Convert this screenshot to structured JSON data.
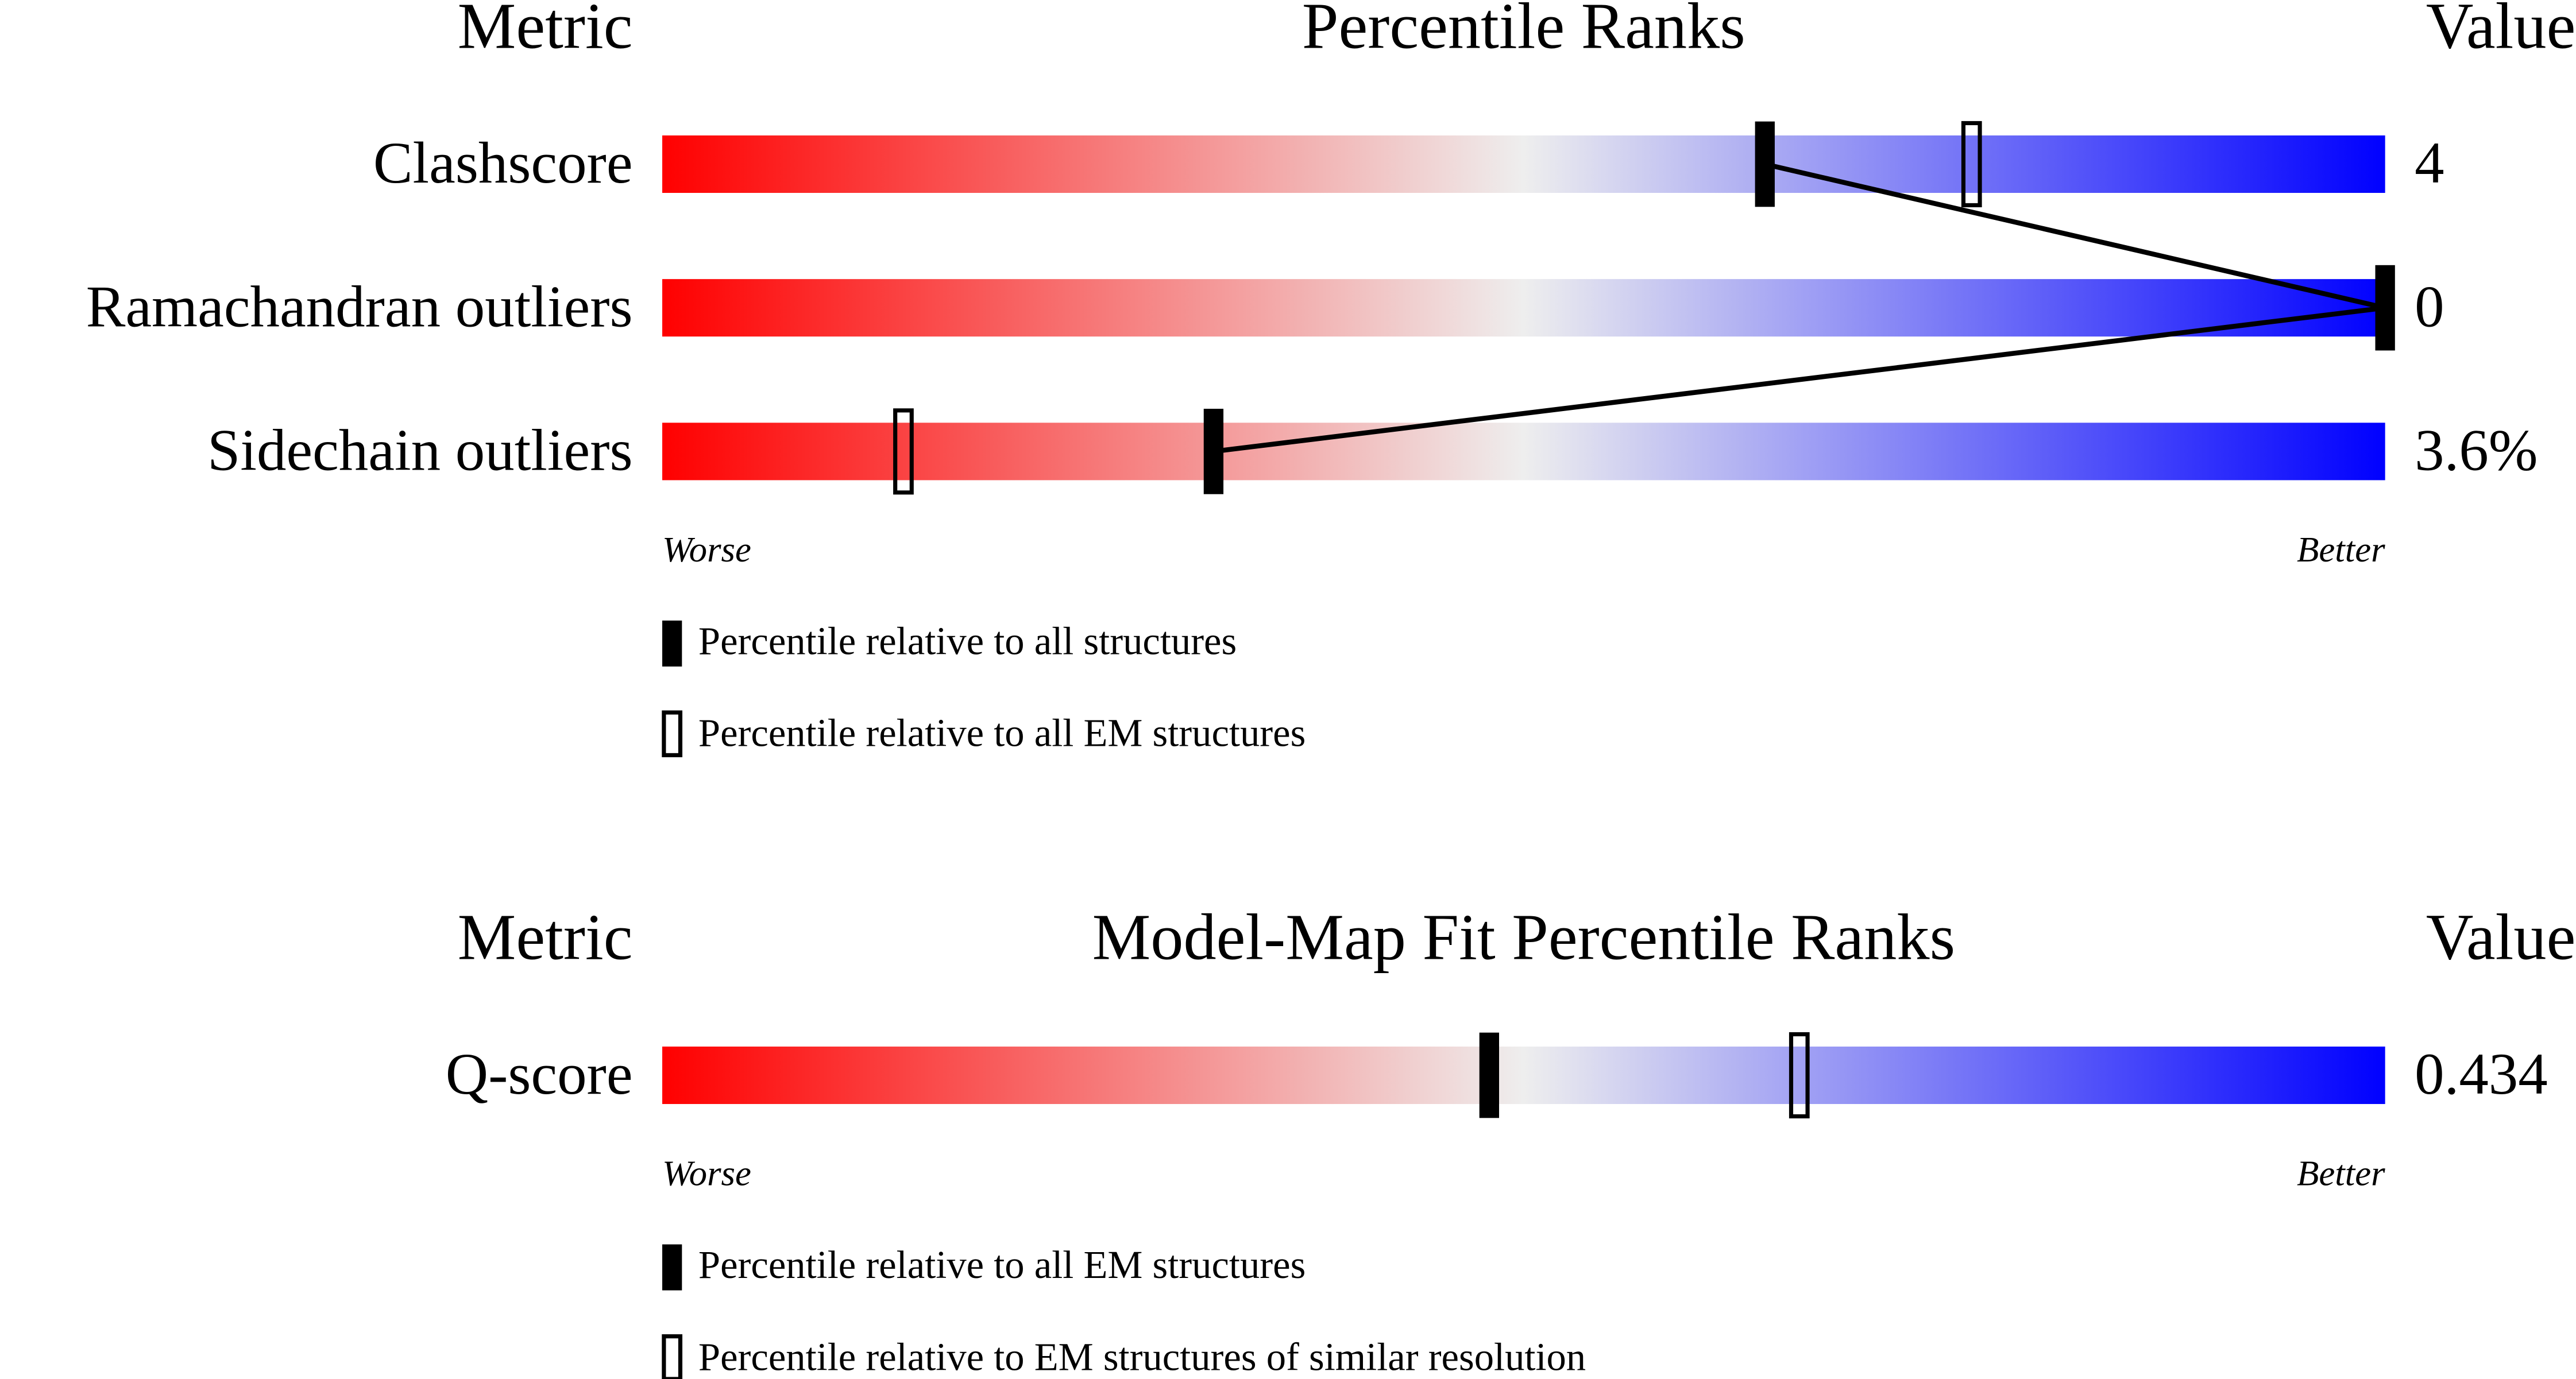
{
  "chart_data": [
    {
      "type": "percentile",
      "metric_header": "Metric",
      "title": "Percentile Ranks",
      "value_header": "Value",
      "categories": [
        "Clashscore",
        "Ramachandran outliers",
        "Sidechain outliers"
      ],
      "metric_values": [
        "4",
        "0",
        "3.6%"
      ],
      "series": [
        {
          "name": "Percentile relative to all structures",
          "style": "filled",
          "connect": true,
          "values": [
            64,
            100,
            32
          ]
        },
        {
          "name": "Percentile relative to all EM structures",
          "style": "open",
          "connect": false,
          "values": [
            76,
            null,
            14
          ]
        }
      ],
      "xlim": [
        0,
        100
      ],
      "low_label": "Worse",
      "high_label": "Better",
      "colors": [
        "#ff0000",
        "#eeeeee",
        "#0000ff"
      ]
    },
    {
      "type": "percentile",
      "metric_header": "Metric",
      "title": "Model-Map Fit Percentile Ranks",
      "value_header": "Value",
      "categories": [
        "Q-score"
      ],
      "metric_values": [
        "0.434"
      ],
      "series": [
        {
          "name": "Percentile relative to all EM structures",
          "style": "filled",
          "connect": true,
          "values": [
            48
          ]
        },
        {
          "name": "Percentile relative to EM structures of similar resolution",
          "style": "open",
          "connect": false,
          "values": [
            66
          ]
        }
      ],
      "xlim": [
        0,
        100
      ],
      "low_label": "Worse",
      "high_label": "Better",
      "colors": [
        "#ff0000",
        "#eeeeee",
        "#0000ff"
      ]
    }
  ]
}
